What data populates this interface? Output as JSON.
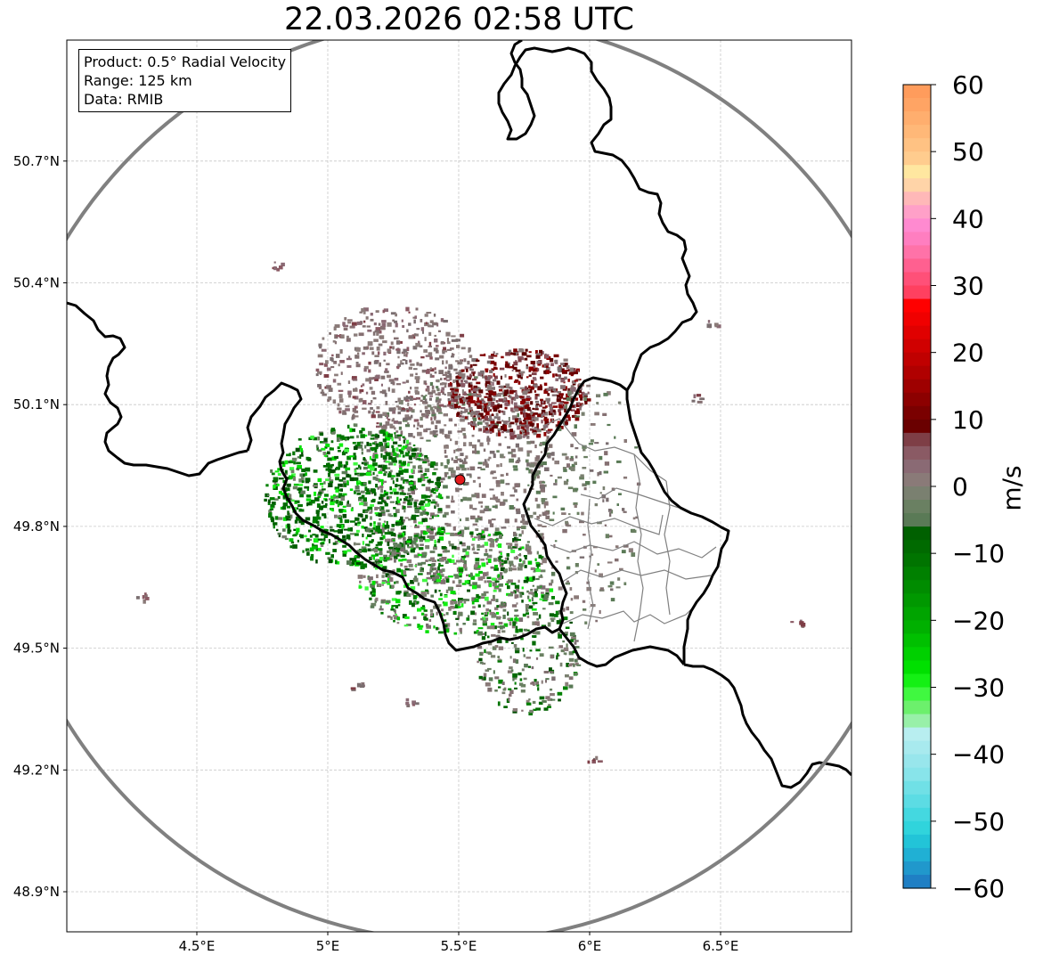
{
  "title": "22.03.2026 02:58 UTC",
  "info": {
    "product": "Product: 0.5° Radial Velocity",
    "range": "Range: 125 km",
    "data": "Data: RMIB"
  },
  "axes": {
    "x_ticks": [
      {
        "value": 4.5,
        "label": "4.5°E"
      },
      {
        "value": 5.0,
        "label": "5°E"
      },
      {
        "value": 5.5,
        "label": "5.5°E"
      },
      {
        "value": 6.0,
        "label": "6°E"
      },
      {
        "value": 6.5,
        "label": "6.5°E"
      }
    ],
    "y_ticks": [
      {
        "value": 48.9,
        "label": "48.9°N"
      },
      {
        "value": 49.2,
        "label": "49.2°N"
      },
      {
        "value": 49.5,
        "label": "49.5°N"
      },
      {
        "value": 49.8,
        "label": "49.8°N"
      },
      {
        "value": 50.1,
        "label": "50.1°N"
      },
      {
        "value": 50.4,
        "label": "50.4°N"
      },
      {
        "value": 50.7,
        "label": "50.7°N"
      }
    ],
    "lon_range": [
      4.0,
      7.0
    ],
    "lat_range": [
      48.8,
      51.0
    ],
    "grid": true
  },
  "radar": {
    "lon": 5.505,
    "lat": 49.915,
    "range_km": 125,
    "marker_color": "#e31a1c"
  },
  "colorbar": {
    "label": "m/s",
    "min": -60,
    "max": 60,
    "ticks": [
      {
        "value": 60,
        "label": "60"
      },
      {
        "value": 50,
        "label": "50"
      },
      {
        "value": 40,
        "label": "40"
      },
      {
        "value": 30,
        "label": "30"
      },
      {
        "value": 20,
        "label": "20"
      },
      {
        "value": 10,
        "label": "10"
      },
      {
        "value": 0,
        "label": "0"
      },
      {
        "value": -10,
        "label": "−10"
      },
      {
        "value": -20,
        "label": "−20"
      },
      {
        "value": -30,
        "label": "−30"
      },
      {
        "value": -40,
        "label": "−40"
      },
      {
        "value": -50,
        "label": "−50"
      },
      {
        "value": -60,
        "label": "−60"
      }
    ],
    "bands": [
      {
        "from": 58,
        "to": 60,
        "color": "#ff9c5c"
      },
      {
        "from": 56,
        "to": 58,
        "color": "#ffa464"
      },
      {
        "from": 54,
        "to": 56,
        "color": "#ffae6e"
      },
      {
        "from": 52,
        "to": 54,
        "color": "#ffb878"
      },
      {
        "from": 50,
        "to": 52,
        "color": "#ffc283"
      },
      {
        "from": 48,
        "to": 50,
        "color": "#ffcc8e"
      },
      {
        "from": 46,
        "to": 48,
        "color": "#ffe7a0"
      },
      {
        "from": 44,
        "to": 46,
        "color": "#ffd4a8"
      },
      {
        "from": 42,
        "to": 44,
        "color": "#ffb8b8"
      },
      {
        "from": 40,
        "to": 42,
        "color": "#ffa0c8"
      },
      {
        "from": 38,
        "to": 40,
        "color": "#ff8ad0"
      },
      {
        "from": 36,
        "to": 38,
        "color": "#ff7ec0"
      },
      {
        "from": 34,
        "to": 36,
        "color": "#ff72a8"
      },
      {
        "from": 32,
        "to": 34,
        "color": "#ff6090"
      },
      {
        "from": 30,
        "to": 32,
        "color": "#ff5078"
      },
      {
        "from": 28,
        "to": 30,
        "color": "#ff4060"
      },
      {
        "from": 26,
        "to": 28,
        "color": "#ff0000"
      },
      {
        "from": 24,
        "to": 26,
        "color": "#f00000"
      },
      {
        "from": 22,
        "to": 24,
        "color": "#e00000"
      },
      {
        "from": 20,
        "to": 22,
        "color": "#d00000"
      },
      {
        "from": 18,
        "to": 20,
        "color": "#c00000"
      },
      {
        "from": 16,
        "to": 18,
        "color": "#b00000"
      },
      {
        "from": 14,
        "to": 16,
        "color": "#9e0000"
      },
      {
        "from": 12,
        "to": 14,
        "color": "#8c0000"
      },
      {
        "from": 10,
        "to": 12,
        "color": "#7a0000"
      },
      {
        "from": 8,
        "to": 10,
        "color": "#6a0000"
      },
      {
        "from": 6,
        "to": 8,
        "color": "#7e3e46"
      },
      {
        "from": 4,
        "to": 6,
        "color": "#8a5a64"
      },
      {
        "from": 2,
        "to": 4,
        "color": "#8a6a74"
      },
      {
        "from": 0,
        "to": 2,
        "color": "#8a7a78"
      },
      {
        "from": -2,
        "to": 0,
        "color": "#7a8070"
      },
      {
        "from": -4,
        "to": -2,
        "color": "#6a8062"
      },
      {
        "from": -6,
        "to": -4,
        "color": "#5a7a56"
      },
      {
        "from": -8,
        "to": -6,
        "color": "#006000"
      },
      {
        "from": -10,
        "to": -8,
        "color": "#006a00"
      },
      {
        "from": -12,
        "to": -10,
        "color": "#007400"
      },
      {
        "from": -14,
        "to": -12,
        "color": "#008000"
      },
      {
        "from": -16,
        "to": -14,
        "color": "#008c00"
      },
      {
        "from": -18,
        "to": -16,
        "color": "#009800"
      },
      {
        "from": -20,
        "to": -18,
        "color": "#00a400"
      },
      {
        "from": -22,
        "to": -20,
        "color": "#00b000"
      },
      {
        "from": -24,
        "to": -22,
        "color": "#00c000"
      },
      {
        "from": -26,
        "to": -24,
        "color": "#00d000"
      },
      {
        "from": -28,
        "to": -26,
        "color": "#00e000"
      },
      {
        "from": -30,
        "to": -28,
        "color": "#14f014"
      },
      {
        "from": -32,
        "to": -30,
        "color": "#40f840"
      },
      {
        "from": -34,
        "to": -32,
        "color": "#6cf06c"
      },
      {
        "from": -36,
        "to": -34,
        "color": "#98f0a8"
      },
      {
        "from": -38,
        "to": -36,
        "color": "#b8eef0"
      },
      {
        "from": -40,
        "to": -38,
        "color": "#a8eaee"
      },
      {
        "from": -42,
        "to": -40,
        "color": "#98e6ec"
      },
      {
        "from": -44,
        "to": -42,
        "color": "#88e4ea"
      },
      {
        "from": -46,
        "to": -44,
        "color": "#70e0e6"
      },
      {
        "from": -48,
        "to": -46,
        "color": "#5cdce4"
      },
      {
        "from": -50,
        "to": -48,
        "color": "#44d8e0"
      },
      {
        "from": -52,
        "to": -50,
        "color": "#30d4dc"
      },
      {
        "from": -54,
        "to": -52,
        "color": "#22c4d8"
      },
      {
        "from": -56,
        "to": -54,
        "color": "#20b0d4"
      },
      {
        "from": -58,
        "to": -56,
        "color": "#2098cc"
      },
      {
        "from": -60,
        "to": -58,
        "color": "#1f7fc4"
      }
    ]
  },
  "colors": {
    "range_ring": "#808080",
    "border": "#000000",
    "admin_border": "#808080",
    "grid": "#c8c8c8"
  }
}
